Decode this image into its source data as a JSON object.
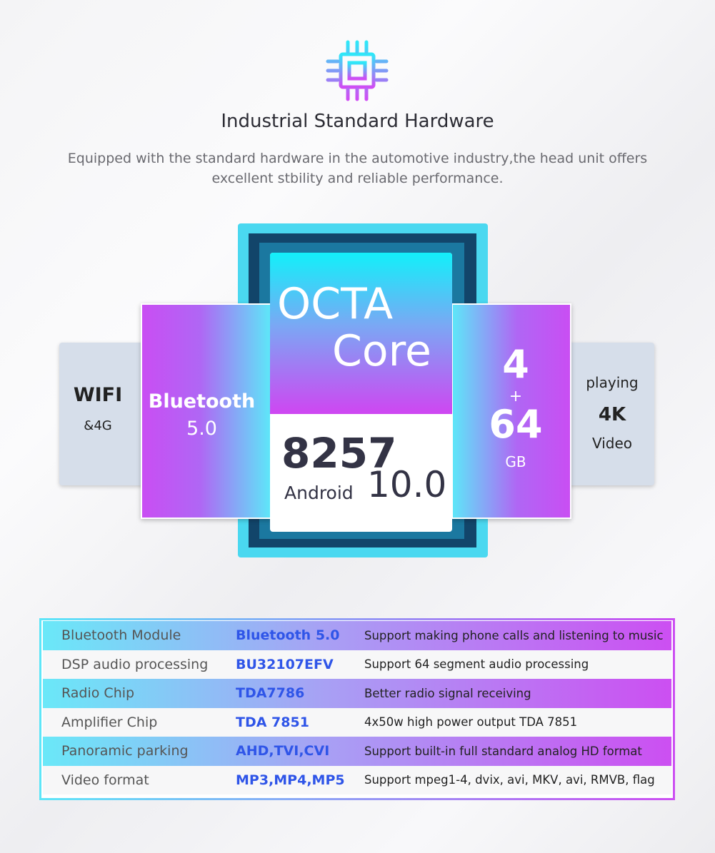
{
  "header": {
    "icon": "cpu-chip-icon",
    "title": "Industrial Standard Hardware",
    "subtitle_line1": "Equipped with the standard hardware in the automotive industry,the head unit offers",
    "subtitle_line2": "excellent stbility and reliable performance."
  },
  "chip": {
    "octa": "OCTA",
    "core": "Core",
    "model": "8257",
    "android_label": "Android",
    "android_version": "10.0"
  },
  "left_panel": {
    "title": "Bluetooth",
    "version": "5.0"
  },
  "wifi_card": {
    "title": "WIFI",
    "sub": "&4G"
  },
  "right_panel": {
    "ram": "4",
    "plus": "+",
    "storage": "64",
    "unit": "GB"
  },
  "video_card": {
    "line1": "playing",
    "line2": "4K",
    "line3": "Video"
  },
  "colors": {
    "cyan": "#5ee8f8",
    "magenta": "#cc4ff2",
    "value_blue": "#2f55e8",
    "navy": "#12456a"
  },
  "table": [
    {
      "name": "Bluetooth Module",
      "value": "Bluetooth 5.0",
      "desc": "Support making phone calls and listening to music"
    },
    {
      "name": "DSP audio processing",
      "value": "BU32107EFV",
      "desc": "Support 64 segment audio processing"
    },
    {
      "name": "Radio Chip",
      "value": "TDA7786",
      "desc": "Better radio signal receiving"
    },
    {
      "name": "Amplifier Chip",
      "value": "TDA 7851",
      "desc": "4x50w high power output TDA 7851"
    },
    {
      "name": "Panoramic parking",
      "value": "AHD,TVI,CVI",
      "desc": "Support built-in full standard analog HD format"
    },
    {
      "name": "Video format",
      "value": "MP3,MP4,MP5",
      "desc": "Support mpeg1-4, dvix, avi, MKV, avi, RMVB, flag"
    }
  ]
}
